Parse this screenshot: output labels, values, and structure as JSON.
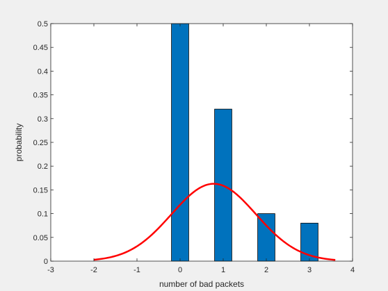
{
  "chart_data": {
    "type": "bar",
    "title": "",
    "xlabel": "number of bad packets",
    "ylabel": "probability",
    "xlim": [
      -3,
      4
    ],
    "ylim": [
      0,
      0.5
    ],
    "xticks": [
      "-3",
      "-2",
      "-1",
      "0",
      "1",
      "2",
      "3",
      "4"
    ],
    "yticks": [
      "0",
      "0.05",
      "0.1",
      "0.15",
      "0.2",
      "0.25",
      "0.3",
      "0.35",
      "0.4",
      "0.45",
      "0.5"
    ],
    "grid": false,
    "legend": "none",
    "series": [
      {
        "type": "bar",
        "x": [
          0,
          1,
          2,
          3
        ],
        "values": [
          0.5,
          0.32,
          0.1,
          0.08
        ],
        "bar_width": 0.4,
        "color": "#0072bd"
      },
      {
        "type": "line",
        "curve": "normal-pdf",
        "mean": 0.78,
        "std": 0.98,
        "scale": 0.4,
        "x_range": [
          -2,
          3.6
        ],
        "color": "#ff0000"
      }
    ]
  },
  "colors": {
    "figure_background": "#f0f0f0",
    "axes_background": "#ffffff",
    "axes_color": "#262626",
    "bar_fill": "#0072bd",
    "bar_edge": "#000000",
    "fit_line": "#ff0000"
  }
}
